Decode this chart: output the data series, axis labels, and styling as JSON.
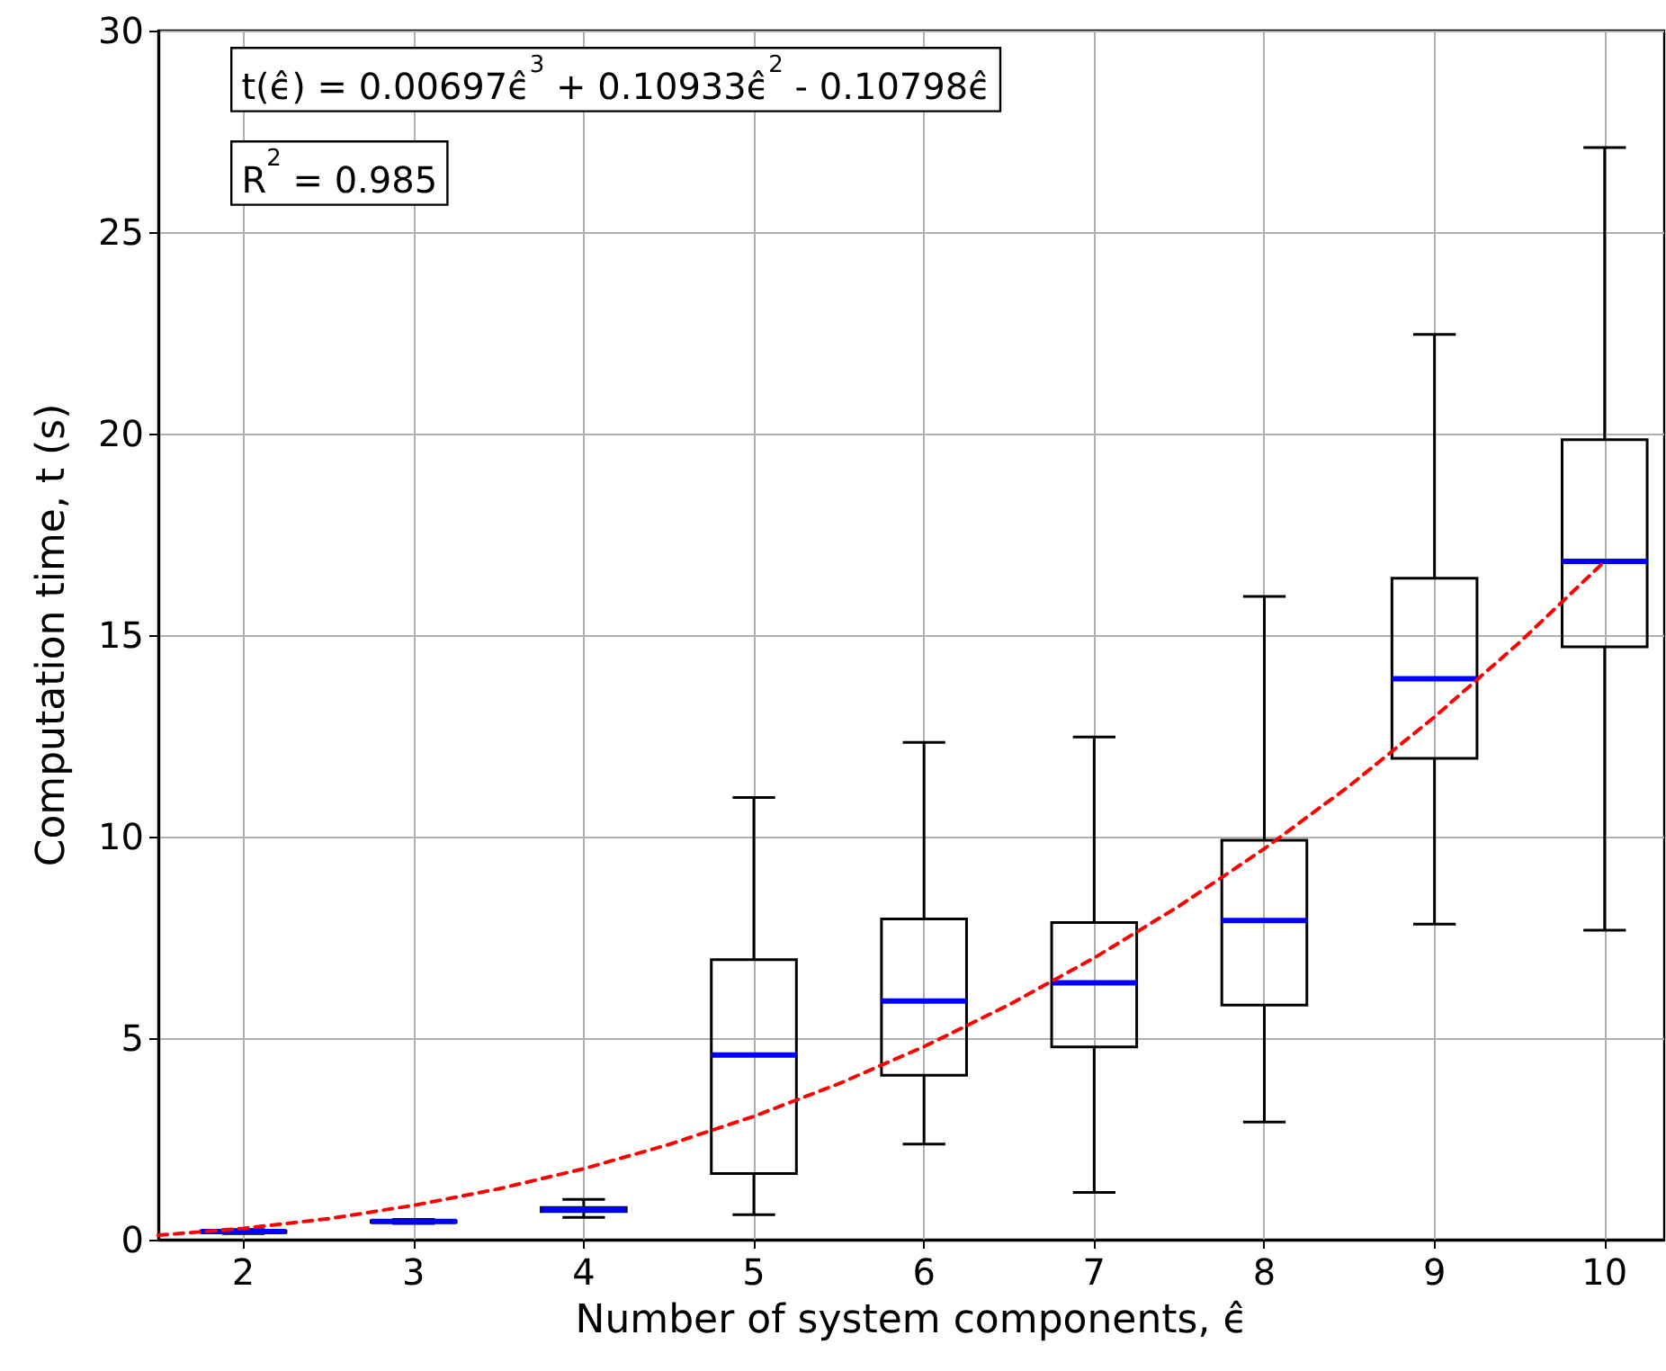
{
  "chart_data": {
    "type": "box",
    "xlabel": "Number of system components, ϵ̂",
    "ylabel": "Computation time, t (s)",
    "annotations": [
      "t(ϵ̂) = 0.00697ϵ̂$^{3}$ + 0.10933ϵ̂$^{2}$ - 0.10798ϵ̂",
      "R$^{2}$ = 0.985"
    ],
    "xlim": [
      1.5,
      10.35
    ],
    "xticks": [
      2,
      3,
      4,
      5,
      6,
      7,
      8,
      9,
      10
    ],
    "ylim": [
      0,
      30
    ],
    "yticks": [
      0,
      5,
      10,
      15,
      20,
      25,
      30
    ],
    "grid": true,
    "series": [
      {
        "color": "#000000",
        "x": [
          2,
          3,
          4,
          5,
          6,
          7,
          8,
          9,
          10
        ],
        "boxes": [
          {
            "low": 0.15,
            "q1": 0.18,
            "median": 0.2,
            "q3": 0.22,
            "high": 0.25
          },
          {
            "low": 0.4,
            "q1": 0.43,
            "median": 0.45,
            "q3": 0.47,
            "high": 0.5
          },
          {
            "low": 0.55,
            "q1": 0.7,
            "median": 0.75,
            "q3": 0.8,
            "high": 1.0
          },
          {
            "low": 0.62,
            "q1": 1.64,
            "median": 4.58,
            "q3": 6.95,
            "high": 10.97
          },
          {
            "low": 2.37,
            "q1": 4.08,
            "median": 5.92,
            "q3": 7.96,
            "high": 12.34
          },
          {
            "low": 1.17,
            "q1": 4.78,
            "median": 6.37,
            "q3": 7.87,
            "high": 12.47
          },
          {
            "low": 2.92,
            "q1": 5.82,
            "median": 7.92,
            "q3": 9.91,
            "high": 15.96
          },
          {
            "low": 7.83,
            "q1": 11.94,
            "median": 13.92,
            "q3": 16.41,
            "high": 22.46
          },
          {
            "low": 7.68,
            "q1": 14.71,
            "median": 16.83,
            "q3": 19.85,
            "high": 27.1
          }
        ]
      },
      {
        "type": "line",
        "color": "#ff0000",
        "line_style": "dashed",
        "marker": "none",
        "x": [
          1.5,
          2,
          2.5,
          3,
          3.5,
          4,
          4.5,
          5,
          5.5,
          6,
          6.5,
          7,
          7.5,
          8,
          8.5,
          9,
          9.5,
          10
        ],
        "values": [
          0.11,
          0.28,
          0.52,
          0.85,
          1.26,
          1.76,
          2.36,
          3.06,
          3.87,
          4.79,
          5.83,
          6.99,
          8.28,
          9.7,
          11.26,
          12.97,
          14.82,
          16.83
        ]
      }
    ]
  }
}
